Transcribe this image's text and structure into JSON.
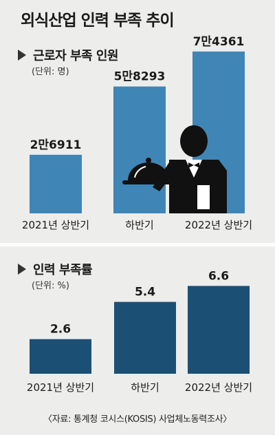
{
  "title": "외식산업 인력 부족 추이",
  "source": "〈자료: 통계청 코시스(KOSIS) 사업체노동력조사〉",
  "colors": {
    "top_bar": "#3f86b6",
    "bottom_bar": "#1c4f74",
    "icon": "#111111",
    "background": "#ededec"
  },
  "icons": [
    "waiter-icon",
    "cloche-icon"
  ],
  "chart_data": [
    {
      "type": "bar",
      "title": "근로자 부족 인원",
      "unit": "(단위: 명)",
      "categories": [
        "2021년 상반기",
        "하반기",
        "2022년 상반기"
      ],
      "values": [
        26911,
        58293,
        74361
      ],
      "value_labels": [
        "2만6911",
        "5만8293",
        "7만4361"
      ],
      "ylim": [
        0,
        80000
      ],
      "grid": false
    },
    {
      "type": "bar",
      "title": "인력 부족률",
      "unit": "(단위: %)",
      "categories": [
        "2021년 상반기",
        "하반기",
        "2022년 상반기"
      ],
      "values": [
        2.6,
        5.4,
        6.6
      ],
      "value_labels": [
        "2.6",
        "5.4",
        "6.6"
      ],
      "ylim": [
        0,
        7.5
      ],
      "grid": false
    }
  ]
}
